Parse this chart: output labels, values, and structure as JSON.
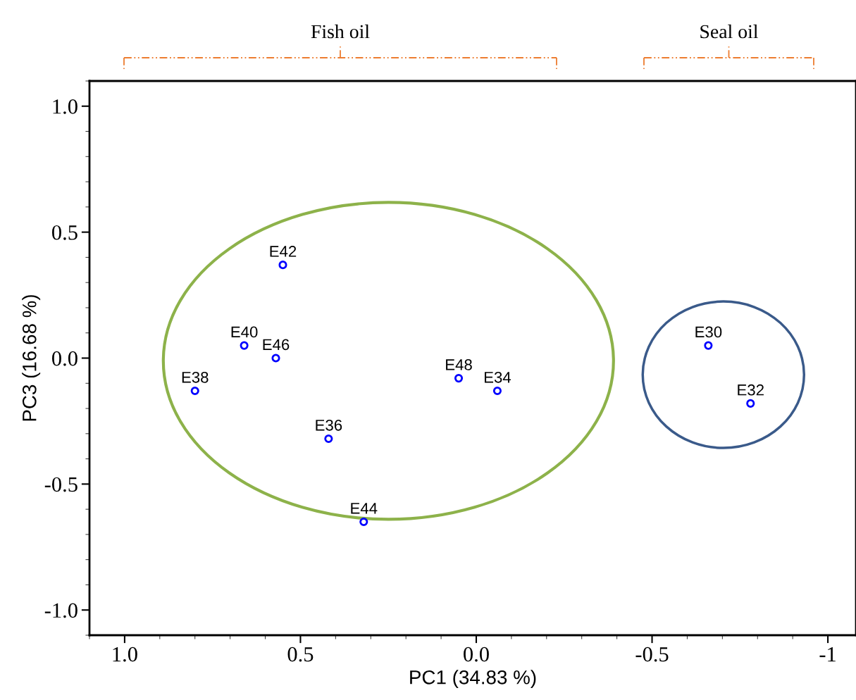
{
  "chart_data": {
    "type": "scatter",
    "xlabel": "PC1 (34.83 %)",
    "ylabel": "PC3 (16.68 %)",
    "xlim": [
      1.1,
      -1.08
    ],
    "ylim": [
      -1.1,
      1.1
    ],
    "xticks": [
      {
        "value": 1,
        "label": "1.0"
      },
      0.5,
      {
        "value": 0,
        "label": "0.0"
      },
      -0.5,
      -1
    ],
    "yticks": [
      {
        "value": -1,
        "label": "-1.0"
      },
      -0.5,
      {
        "value": 0,
        "label": "0.0"
      },
      0.5,
      {
        "value": 1,
        "label": "1.0"
      }
    ],
    "grid": false,
    "legend": false,
    "marker": "circle",
    "annotations": [
      "Fish oil",
      "Seal oil"
    ],
    "series": [
      {
        "name": "E42",
        "color": "#0000ff",
        "x": [
          0.55
        ],
        "values": [
          0.37
        ]
      },
      {
        "name": "E40",
        "color": "#0000ff",
        "x": [
          0.66
        ],
        "values": [
          0.05
        ]
      },
      {
        "name": "E46",
        "color": "#0000ff",
        "x": [
          0.57
        ],
        "values": [
          0.0
        ]
      },
      {
        "name": "E38",
        "color": "#0000ff",
        "x": [
          0.8
        ],
        "values": [
          -0.13
        ]
      },
      {
        "name": "E36",
        "color": "#0000ff",
        "x": [
          0.42
        ],
        "values": [
          -0.32
        ]
      },
      {
        "name": "E44",
        "color": "#0000ff",
        "x": [
          0.32
        ],
        "values": [
          -0.65
        ]
      },
      {
        "name": "E48",
        "color": "#0000ff",
        "x": [
          0.05
        ],
        "values": [
          -0.08
        ]
      },
      {
        "name": "E34",
        "color": "#0000ff",
        "x": [
          -0.06
        ],
        "values": [
          -0.13
        ]
      },
      {
        "name": "E30",
        "color": "#0000ff",
        "x": [
          -0.66
        ],
        "values": [
          0.05
        ]
      },
      {
        "name": "E32",
        "color": "#0000ff",
        "x": [
          -0.78
        ],
        "values": [
          -0.18
        ]
      }
    ]
  }
}
